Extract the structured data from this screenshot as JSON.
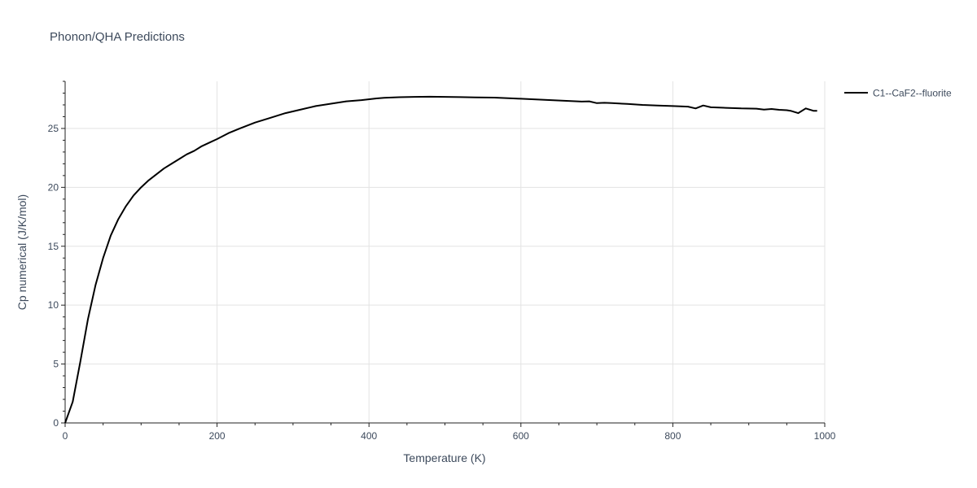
{
  "chart_data": {
    "type": "line",
    "title": "Phonon/QHA Predictions",
    "xlabel": "Temperature (K)",
    "ylabel": "Cp numerical (J/K/mol)",
    "xlim": [
      0,
      1000
    ],
    "ylim": [
      0,
      29
    ],
    "x_ticks": [
      0,
      200,
      400,
      600,
      800,
      1000
    ],
    "y_ticks": [
      0,
      5,
      10,
      15,
      20,
      25
    ],
    "x_minor_step": 50,
    "y_minor_step": 1,
    "grid": true,
    "legend_position": "top-right",
    "series": [
      {
        "name": "C1--CaF2--fluorite",
        "color": "#000000",
        "x": [
          0,
          10,
          20,
          30,
          40,
          50,
          60,
          70,
          80,
          90,
          100,
          110,
          120,
          130,
          140,
          150,
          160,
          170,
          180,
          190,
          200,
          215,
          230,
          250,
          270,
          290,
          310,
          330,
          350,
          370,
          390,
          410,
          420,
          440,
          460,
          480,
          500,
          520,
          540,
          565,
          600,
          640,
          680,
          690,
          700,
          710,
          720,
          740,
          760,
          780,
          800,
          820,
          830,
          840,
          850,
          870,
          890,
          910,
          920,
          930,
          940,
          950,
          955,
          965,
          975,
          985,
          990
        ],
        "y": [
          0,
          1.8,
          5.2,
          8.8,
          11.7,
          14.0,
          15.9,
          17.3,
          18.4,
          19.3,
          20.0,
          20.6,
          21.1,
          21.6,
          22.0,
          22.4,
          22.8,
          23.1,
          23.5,
          23.8,
          24.1,
          24.6,
          25.0,
          25.5,
          25.9,
          26.3,
          26.6,
          26.9,
          27.1,
          27.3,
          27.4,
          27.55,
          27.6,
          27.65,
          27.68,
          27.7,
          27.68,
          27.66,
          27.64,
          27.62,
          27.52,
          27.4,
          27.28,
          27.3,
          27.15,
          27.18,
          27.15,
          27.08,
          27.0,
          26.95,
          26.9,
          26.85,
          26.7,
          26.95,
          26.8,
          26.75,
          26.7,
          26.68,
          26.6,
          26.65,
          26.58,
          26.55,
          26.5,
          26.3,
          26.7,
          26.5,
          26.5
        ]
      }
    ]
  }
}
